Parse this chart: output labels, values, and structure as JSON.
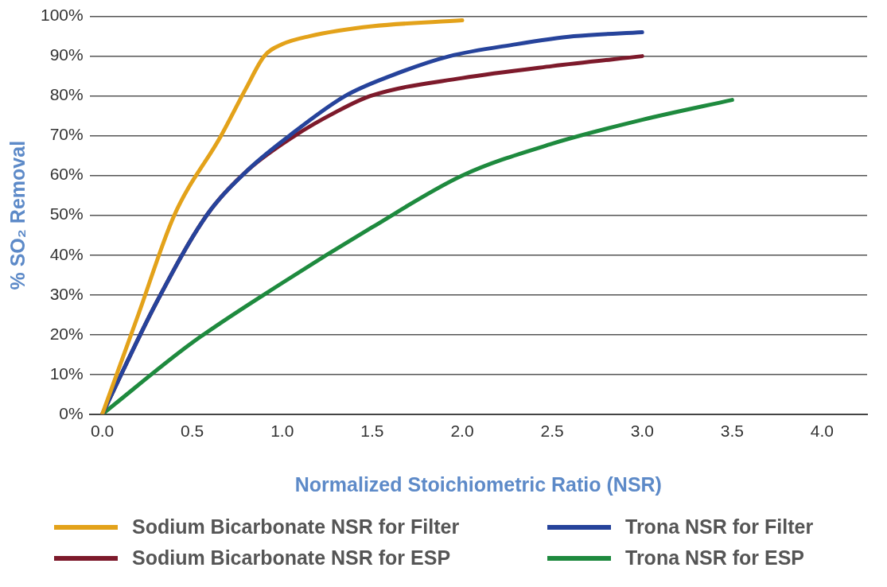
{
  "chart_data": {
    "type": "line",
    "xlabel": "Normalized Stoichiometric Ratio (NSR)",
    "ylabel": "% SO₂ Removal",
    "xlim": [
      -0.07,
      4.25
    ],
    "ylim": [
      0,
      100
    ],
    "xticks": [
      {
        "value": 0,
        "label": "0.0"
      },
      {
        "value": 0.5,
        "label": "0.5"
      },
      {
        "value": 1,
        "label": "1.0"
      },
      {
        "value": 1.5,
        "label": "1.5"
      },
      {
        "value": 2,
        "label": "2.0"
      },
      {
        "value": 2.5,
        "label": "2.5"
      },
      {
        "value": 3,
        "label": "3.0"
      },
      {
        "value": 3.5,
        "label": "3.5"
      },
      {
        "value": 4,
        "label": "4.0"
      }
    ],
    "yticks": [
      {
        "value": 0,
        "label": "0%"
      },
      {
        "value": 10,
        "label": "10%"
      },
      {
        "value": 20,
        "label": "20%"
      },
      {
        "value": 30,
        "label": "30%"
      },
      {
        "value": 40,
        "label": "40%"
      },
      {
        "value": 50,
        "label": "50%"
      },
      {
        "value": 60,
        "label": "60%"
      },
      {
        "value": 70,
        "label": "70%"
      },
      {
        "value": 80,
        "label": "80%"
      },
      {
        "value": 90,
        "label": "90%"
      },
      {
        "value": 100,
        "label": "100%"
      }
    ],
    "grid": "y",
    "legend": "bottom",
    "marker": "none",
    "line_style": "solid",
    "series": [
      {
        "name": "Sodium Bicarbonate NSR for Filter",
        "color": "#e3a21a",
        "x": [
          0,
          0.2,
          0.4,
          0.66,
          0.8,
          0.9,
          1.0,
          1.15,
          1.5,
          2.0
        ],
        "values": [
          0,
          25,
          50,
          70,
          82,
          90,
          93,
          95,
          97.5,
          99
        ]
      },
      {
        "name": "Trona NSR for Filter",
        "color": "#26439b",
        "x": [
          0,
          0.3,
          0.58,
          0.8,
          1.04,
          1.35,
          1.6,
          1.93,
          2.3,
          2.62,
          3.0
        ],
        "values": [
          0,
          28,
          50,
          61,
          70,
          80,
          85,
          90,
          93,
          95,
          96
        ]
      },
      {
        "name": "Sodium Bicarbonate NSR for ESP",
        "color": "#7d1a2b",
        "x": [
          0,
          0.3,
          0.58,
          0.8,
          1.07,
          1.3,
          1.49,
          2.0,
          2.5,
          3.0
        ],
        "values": [
          0,
          28,
          50,
          61,
          70,
          76,
          80,
          84.5,
          87.5,
          90
        ]
      },
      {
        "name": "Trona NSR for ESP",
        "color": "#1e8a3e",
        "x": [
          0,
          0.5,
          1.0,
          1.5,
          2.0,
          2.5,
          3.0,
          3.5
        ],
        "values": [
          0,
          18,
          33,
          47,
          60,
          68,
          74,
          79
        ]
      }
    ]
  }
}
